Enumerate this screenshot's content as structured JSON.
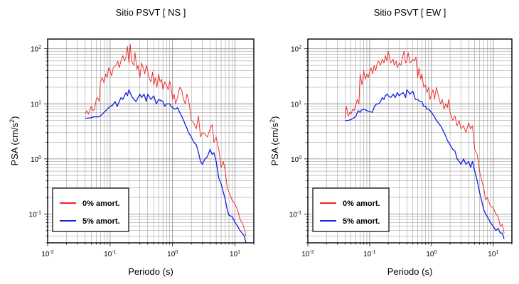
{
  "chart_data": [
    {
      "type": "line",
      "title": "Sitio PSVT [ NS ]",
      "xlabel": "Periodo (s)",
      "ylabel_base": "PSA (cm/s",
      "ylabel_sup": "2",
      "ylabel_end": ")",
      "x_scale": "log",
      "y_scale": "log",
      "xlim": [
        0.01,
        20
      ],
      "ylim": [
        0.03,
        150
      ],
      "grid": true,
      "legend_position": "bottom-left",
      "x_ticks": [
        {
          "base": "10",
          "exp": "-2"
        },
        {
          "base": "10",
          "exp": "-1"
        },
        {
          "base": "10",
          "exp": "0"
        },
        {
          "base": "10",
          "exp": "1"
        }
      ],
      "y_ticks": [
        {
          "base": "10",
          "exp": "-1"
        },
        {
          "base": "10",
          "exp": "0"
        },
        {
          "base": "10",
          "exp": "1"
        },
        {
          "base": "10",
          "exp": "2"
        }
      ],
      "series": [
        {
          "name": "0% amort.",
          "color": "#ee2222",
          "x": [
            0.04,
            0.042,
            0.045,
            0.048,
            0.05,
            0.053,
            0.056,
            0.06,
            0.063,
            0.067,
            0.07,
            0.075,
            0.08,
            0.085,
            0.09,
            0.095,
            0.1,
            0.106,
            0.112,
            0.118,
            0.125,
            0.133,
            0.14,
            0.15,
            0.16,
            0.17,
            0.18,
            0.19,
            0.2,
            0.21,
            0.22,
            0.24,
            0.25,
            0.27,
            0.28,
            0.3,
            0.32,
            0.34,
            0.36,
            0.38,
            0.4,
            0.42,
            0.45,
            0.48,
            0.5,
            0.53,
            0.56,
            0.6,
            0.63,
            0.67,
            0.7,
            0.75,
            0.8,
            0.85,
            0.9,
            0.95,
            1.0,
            1.06,
            1.12,
            1.2,
            1.3,
            1.4,
            1.5,
            1.6,
            1.7,
            1.8,
            1.9,
            2.0,
            2.2,
            2.4,
            2.6,
            2.8,
            3.0,
            3.3,
            3.6,
            4.0,
            4.3,
            4.6,
            5.0,
            5.5,
            6.0,
            6.5,
            7.0,
            7.5,
            8.0,
            9.0,
            10.0,
            11.0,
            12.0,
            13.0,
            14.0,
            15.0
          ],
          "y": [
            6.5,
            7.5,
            6.5,
            8.0,
            9.0,
            7.5,
            8.0,
            12.0,
            13.0,
            11.0,
            25.0,
            30.0,
            24.0,
            35.0,
            30.0,
            45.0,
            40.0,
            32.0,
            45.0,
            48.0,
            50.0,
            60.0,
            45.0,
            62.0,
            75.0,
            60.0,
            70.0,
            110.0,
            55.0,
            120.0,
            60.0,
            50.0,
            85.0,
            42.0,
            50.0,
            30.0,
            55.0,
            45.0,
            35.0,
            50.0,
            40.0,
            30.0,
            25.0,
            38.0,
            22.0,
            30.0,
            20.0,
            35.0,
            25.0,
            28.0,
            18.0,
            25.0,
            22.0,
            18.0,
            26.0,
            20.0,
            12.0,
            15.0,
            10.0,
            13.0,
            20.0,
            18.0,
            12.0,
            10.0,
            15.0,
            12.0,
            8.0,
            5.0,
            4.5,
            3.5,
            6.0,
            2.5,
            3.0,
            2.8,
            2.5,
            3.5,
            4.2,
            2.0,
            2.5,
            1.5,
            0.7,
            0.9,
            0.6,
            0.3,
            0.25,
            0.18,
            0.15,
            0.12,
            0.08,
            0.07,
            0.055,
            0.04
          ]
        },
        {
          "name": "5% amort.",
          "color": "#1122dd",
          "x": [
            0.04,
            0.045,
            0.05,
            0.055,
            0.06,
            0.065,
            0.07,
            0.075,
            0.08,
            0.085,
            0.09,
            0.1,
            0.11,
            0.12,
            0.13,
            0.14,
            0.15,
            0.16,
            0.17,
            0.18,
            0.19,
            0.2,
            0.22,
            0.24,
            0.26,
            0.28,
            0.3,
            0.32,
            0.35,
            0.38,
            0.4,
            0.45,
            0.5,
            0.55,
            0.6,
            0.65,
            0.7,
            0.75,
            0.8,
            0.85,
            0.9,
            0.95,
            1.0,
            1.1,
            1.2,
            1.3,
            1.4,
            1.5,
            1.6,
            1.7,
            1.8,
            2.0,
            2.2,
            2.4,
            2.6,
            2.8,
            3.0,
            3.3,
            3.6,
            4.0,
            4.3,
            4.6,
            5.0,
            5.5,
            6.0,
            6.5,
            7.0,
            7.5,
            8.0,
            9.0,
            10.0,
            11.0,
            12.0,
            13.0,
            14.0,
            15.0
          ],
          "y": [
            5.5,
            5.5,
            5.6,
            5.8,
            5.8,
            5.8,
            6.0,
            6.5,
            7.0,
            7.5,
            8.0,
            9.0,
            9.5,
            11.0,
            9.0,
            11.0,
            13.0,
            12.0,
            14.0,
            16.0,
            14.0,
            18.0,
            14.0,
            12.0,
            11.0,
            13.0,
            15.0,
            13.0,
            15.0,
            11.0,
            15.0,
            12.0,
            14.0,
            10.0,
            12.0,
            11.5,
            11.0,
            9.0,
            10.0,
            10.0,
            10.0,
            9.0,
            8.5,
            8.0,
            8.5,
            7.0,
            6.0,
            5.0,
            4.2,
            3.6,
            3.0,
            2.5,
            2.0,
            1.8,
            1.3,
            0.9,
            0.8,
            1.0,
            1.1,
            1.5,
            1.2,
            1.3,
            0.9,
            0.45,
            0.35,
            0.25,
            0.18,
            0.12,
            0.095,
            0.09,
            0.07,
            0.06,
            0.05,
            0.045,
            0.04,
            0.03
          ]
        }
      ]
    },
    {
      "type": "line",
      "title": "Sitio PSVT [ EW ]",
      "xlabel": "Periodo (s)",
      "ylabel_base": "PSA (cm/s",
      "ylabel_sup": "2",
      "ylabel_end": ")",
      "x_scale": "log",
      "y_scale": "log",
      "xlim": [
        0.01,
        20
      ],
      "ylim": [
        0.03,
        150
      ],
      "grid": true,
      "legend_position": "bottom-left",
      "x_ticks": [
        {
          "base": "10",
          "exp": "-2"
        },
        {
          "base": "10",
          "exp": "-1"
        },
        {
          "base": "10",
          "exp": "0"
        },
        {
          "base": "10",
          "exp": "1"
        }
      ],
      "y_ticks": [
        {
          "base": "10",
          "exp": "-1"
        },
        {
          "base": "10",
          "exp": "0"
        },
        {
          "base": "10",
          "exp": "1"
        },
        {
          "base": "10",
          "exp": "2"
        }
      ],
      "series": [
        {
          "name": "0% amort.",
          "color": "#ee2222",
          "x": [
            0.04,
            0.042,
            0.045,
            0.048,
            0.05,
            0.053,
            0.056,
            0.06,
            0.063,
            0.067,
            0.07,
            0.075,
            0.08,
            0.085,
            0.09,
            0.095,
            0.1,
            0.106,
            0.112,
            0.118,
            0.125,
            0.133,
            0.14,
            0.15,
            0.16,
            0.17,
            0.18,
            0.19,
            0.2,
            0.21,
            0.22,
            0.24,
            0.25,
            0.27,
            0.28,
            0.3,
            0.32,
            0.34,
            0.36,
            0.38,
            0.4,
            0.42,
            0.45,
            0.48,
            0.5,
            0.53,
            0.56,
            0.6,
            0.63,
            0.67,
            0.7,
            0.75,
            0.8,
            0.85,
            0.9,
            0.95,
            1.0,
            1.06,
            1.12,
            1.2,
            1.3,
            1.4,
            1.5,
            1.6,
            1.7,
            1.8,
            1.9,
            2.0,
            2.2,
            2.4,
            2.6,
            2.8,
            3.0,
            3.3,
            3.6,
            4.0,
            4.3,
            4.6,
            5.0,
            5.5,
            6.0,
            6.5,
            7.0,
            7.5,
            8.0,
            9.0,
            10.0,
            11.0,
            12.0,
            13.0,
            14.0,
            15.0
          ],
          "y": [
            5.5,
            9.0,
            6.0,
            7.0,
            6.5,
            8.0,
            7.5,
            10.0,
            12.0,
            10.0,
            35.0,
            22.0,
            40.0,
            28.0,
            35.0,
            30.0,
            38.0,
            45.0,
            35.0,
            50.0,
            40.0,
            55.0,
            60.0,
            50.0,
            65.0,
            55.0,
            75.0,
            60.0,
            90.0,
            70.0,
            55.0,
            65.0,
            50.0,
            60.0,
            45.0,
            55.0,
            50.0,
            70.0,
            90.0,
            55.0,
            60.0,
            85.0,
            55.0,
            60.0,
            65.0,
            60.0,
            70.0,
            30.0,
            45.0,
            28.0,
            35.0,
            20.0,
            22.0,
            16.0,
            20.0,
            12.0,
            15.0,
            18.0,
            12.0,
            20.0,
            14.0,
            10.0,
            12.0,
            8.0,
            10.0,
            8.5,
            12.0,
            7.0,
            5.0,
            6.0,
            4.0,
            5.0,
            3.5,
            4.0,
            3.0,
            4.5,
            3.5,
            4.0,
            1.5,
            1.2,
            0.6,
            0.4,
            0.3,
            0.18,
            0.2,
            0.14,
            0.13,
            0.1,
            0.09,
            0.06,
            0.065,
            0.045
          ]
        },
        {
          "name": "5% amort.",
          "color": "#1122dd",
          "x": [
            0.04,
            0.045,
            0.05,
            0.055,
            0.06,
            0.065,
            0.07,
            0.075,
            0.08,
            0.085,
            0.09,
            0.1,
            0.11,
            0.12,
            0.13,
            0.14,
            0.15,
            0.16,
            0.17,
            0.18,
            0.19,
            0.2,
            0.22,
            0.24,
            0.26,
            0.28,
            0.3,
            0.32,
            0.35,
            0.38,
            0.4,
            0.45,
            0.5,
            0.55,
            0.6,
            0.65,
            0.7,
            0.75,
            0.8,
            0.85,
            0.9,
            0.95,
            1.0,
            1.1,
            1.2,
            1.3,
            1.4,
            1.5,
            1.6,
            1.7,
            1.8,
            2.0,
            2.2,
            2.4,
            2.6,
            2.8,
            3.0,
            3.3,
            3.6,
            4.0,
            4.3,
            4.6,
            5.0,
            5.5,
            6.0,
            6.5,
            7.0,
            7.5,
            8.0,
            9.0,
            10.0,
            11.0,
            12.0,
            13.0,
            14.0,
            15.0
          ],
          "y": [
            5.0,
            5.0,
            5.2,
            5.5,
            6.0,
            7.5,
            7.0,
            7.8,
            8.0,
            7.8,
            7.5,
            7.2,
            7.0,
            9.0,
            10.0,
            10.0,
            11.0,
            13.0,
            12.0,
            14.0,
            15.0,
            14.0,
            13.0,
            15.0,
            13.0,
            16.0,
            14.0,
            15.0,
            16.0,
            13.0,
            18.0,
            15.0,
            17.0,
            12.0,
            12.0,
            11.0,
            11.0,
            9.0,
            9.0,
            8.0,
            8.0,
            7.5,
            7.0,
            6.0,
            5.0,
            4.5,
            4.0,
            3.5,
            3.0,
            2.6,
            2.2,
            1.8,
            1.5,
            1.4,
            1.0,
            0.9,
            0.8,
            1.0,
            0.8,
            0.9,
            0.7,
            0.9,
            0.6,
            0.4,
            0.25,
            0.17,
            0.12,
            0.1,
            0.09,
            0.07,
            0.06,
            0.05,
            0.055,
            0.045,
            0.045,
            0.035
          ]
        }
      ]
    }
  ]
}
